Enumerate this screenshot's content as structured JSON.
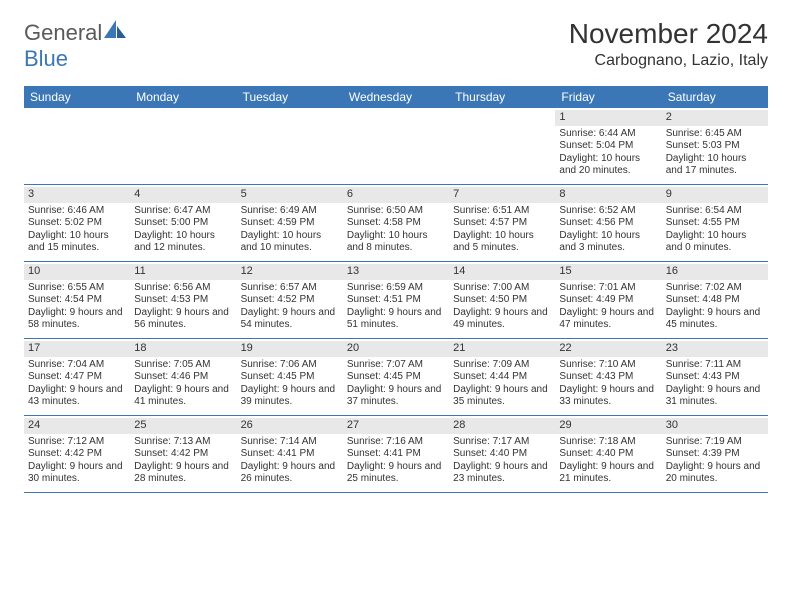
{
  "logo": {
    "word1": "General",
    "word2": "Blue"
  },
  "title": "November 2024",
  "location": "Carbognano, Lazio, Italy",
  "colors": {
    "accent": "#3b77b6",
    "header_text": "#ffffff",
    "daynum_bg": "#e8e8e8",
    "text": "#333333",
    "logo_gray": "#5a5a5a"
  },
  "day_headers": [
    "Sunday",
    "Monday",
    "Tuesday",
    "Wednesday",
    "Thursday",
    "Friday",
    "Saturday"
  ],
  "weeks": [
    [
      {
        "n": "",
        "sr": "",
        "ss": "",
        "dl": ""
      },
      {
        "n": "",
        "sr": "",
        "ss": "",
        "dl": ""
      },
      {
        "n": "",
        "sr": "",
        "ss": "",
        "dl": ""
      },
      {
        "n": "",
        "sr": "",
        "ss": "",
        "dl": ""
      },
      {
        "n": "",
        "sr": "",
        "ss": "",
        "dl": ""
      },
      {
        "n": "1",
        "sr": "Sunrise: 6:44 AM",
        "ss": "Sunset: 5:04 PM",
        "dl": "Daylight: 10 hours and 20 minutes."
      },
      {
        "n": "2",
        "sr": "Sunrise: 6:45 AM",
        "ss": "Sunset: 5:03 PM",
        "dl": "Daylight: 10 hours and 17 minutes."
      }
    ],
    [
      {
        "n": "3",
        "sr": "Sunrise: 6:46 AM",
        "ss": "Sunset: 5:02 PM",
        "dl": "Daylight: 10 hours and 15 minutes."
      },
      {
        "n": "4",
        "sr": "Sunrise: 6:47 AM",
        "ss": "Sunset: 5:00 PM",
        "dl": "Daylight: 10 hours and 12 minutes."
      },
      {
        "n": "5",
        "sr": "Sunrise: 6:49 AM",
        "ss": "Sunset: 4:59 PM",
        "dl": "Daylight: 10 hours and 10 minutes."
      },
      {
        "n": "6",
        "sr": "Sunrise: 6:50 AM",
        "ss": "Sunset: 4:58 PM",
        "dl": "Daylight: 10 hours and 8 minutes."
      },
      {
        "n": "7",
        "sr": "Sunrise: 6:51 AM",
        "ss": "Sunset: 4:57 PM",
        "dl": "Daylight: 10 hours and 5 minutes."
      },
      {
        "n": "8",
        "sr": "Sunrise: 6:52 AM",
        "ss": "Sunset: 4:56 PM",
        "dl": "Daylight: 10 hours and 3 minutes."
      },
      {
        "n": "9",
        "sr": "Sunrise: 6:54 AM",
        "ss": "Sunset: 4:55 PM",
        "dl": "Daylight: 10 hours and 0 minutes."
      }
    ],
    [
      {
        "n": "10",
        "sr": "Sunrise: 6:55 AM",
        "ss": "Sunset: 4:54 PM",
        "dl": "Daylight: 9 hours and 58 minutes."
      },
      {
        "n": "11",
        "sr": "Sunrise: 6:56 AM",
        "ss": "Sunset: 4:53 PM",
        "dl": "Daylight: 9 hours and 56 minutes."
      },
      {
        "n": "12",
        "sr": "Sunrise: 6:57 AM",
        "ss": "Sunset: 4:52 PM",
        "dl": "Daylight: 9 hours and 54 minutes."
      },
      {
        "n": "13",
        "sr": "Sunrise: 6:59 AM",
        "ss": "Sunset: 4:51 PM",
        "dl": "Daylight: 9 hours and 51 minutes."
      },
      {
        "n": "14",
        "sr": "Sunrise: 7:00 AM",
        "ss": "Sunset: 4:50 PM",
        "dl": "Daylight: 9 hours and 49 minutes."
      },
      {
        "n": "15",
        "sr": "Sunrise: 7:01 AM",
        "ss": "Sunset: 4:49 PM",
        "dl": "Daylight: 9 hours and 47 minutes."
      },
      {
        "n": "16",
        "sr": "Sunrise: 7:02 AM",
        "ss": "Sunset: 4:48 PM",
        "dl": "Daylight: 9 hours and 45 minutes."
      }
    ],
    [
      {
        "n": "17",
        "sr": "Sunrise: 7:04 AM",
        "ss": "Sunset: 4:47 PM",
        "dl": "Daylight: 9 hours and 43 minutes."
      },
      {
        "n": "18",
        "sr": "Sunrise: 7:05 AM",
        "ss": "Sunset: 4:46 PM",
        "dl": "Daylight: 9 hours and 41 minutes."
      },
      {
        "n": "19",
        "sr": "Sunrise: 7:06 AM",
        "ss": "Sunset: 4:45 PM",
        "dl": "Daylight: 9 hours and 39 minutes."
      },
      {
        "n": "20",
        "sr": "Sunrise: 7:07 AM",
        "ss": "Sunset: 4:45 PM",
        "dl": "Daylight: 9 hours and 37 minutes."
      },
      {
        "n": "21",
        "sr": "Sunrise: 7:09 AM",
        "ss": "Sunset: 4:44 PM",
        "dl": "Daylight: 9 hours and 35 minutes."
      },
      {
        "n": "22",
        "sr": "Sunrise: 7:10 AM",
        "ss": "Sunset: 4:43 PM",
        "dl": "Daylight: 9 hours and 33 minutes."
      },
      {
        "n": "23",
        "sr": "Sunrise: 7:11 AM",
        "ss": "Sunset: 4:43 PM",
        "dl": "Daylight: 9 hours and 31 minutes."
      }
    ],
    [
      {
        "n": "24",
        "sr": "Sunrise: 7:12 AM",
        "ss": "Sunset: 4:42 PM",
        "dl": "Daylight: 9 hours and 30 minutes."
      },
      {
        "n": "25",
        "sr": "Sunrise: 7:13 AM",
        "ss": "Sunset: 4:42 PM",
        "dl": "Daylight: 9 hours and 28 minutes."
      },
      {
        "n": "26",
        "sr": "Sunrise: 7:14 AM",
        "ss": "Sunset: 4:41 PM",
        "dl": "Daylight: 9 hours and 26 minutes."
      },
      {
        "n": "27",
        "sr": "Sunrise: 7:16 AM",
        "ss": "Sunset: 4:41 PM",
        "dl": "Daylight: 9 hours and 25 minutes."
      },
      {
        "n": "28",
        "sr": "Sunrise: 7:17 AM",
        "ss": "Sunset: 4:40 PM",
        "dl": "Daylight: 9 hours and 23 minutes."
      },
      {
        "n": "29",
        "sr": "Sunrise: 7:18 AM",
        "ss": "Sunset: 4:40 PM",
        "dl": "Daylight: 9 hours and 21 minutes."
      },
      {
        "n": "30",
        "sr": "Sunrise: 7:19 AM",
        "ss": "Sunset: 4:39 PM",
        "dl": "Daylight: 9 hours and 20 minutes."
      }
    ]
  ]
}
